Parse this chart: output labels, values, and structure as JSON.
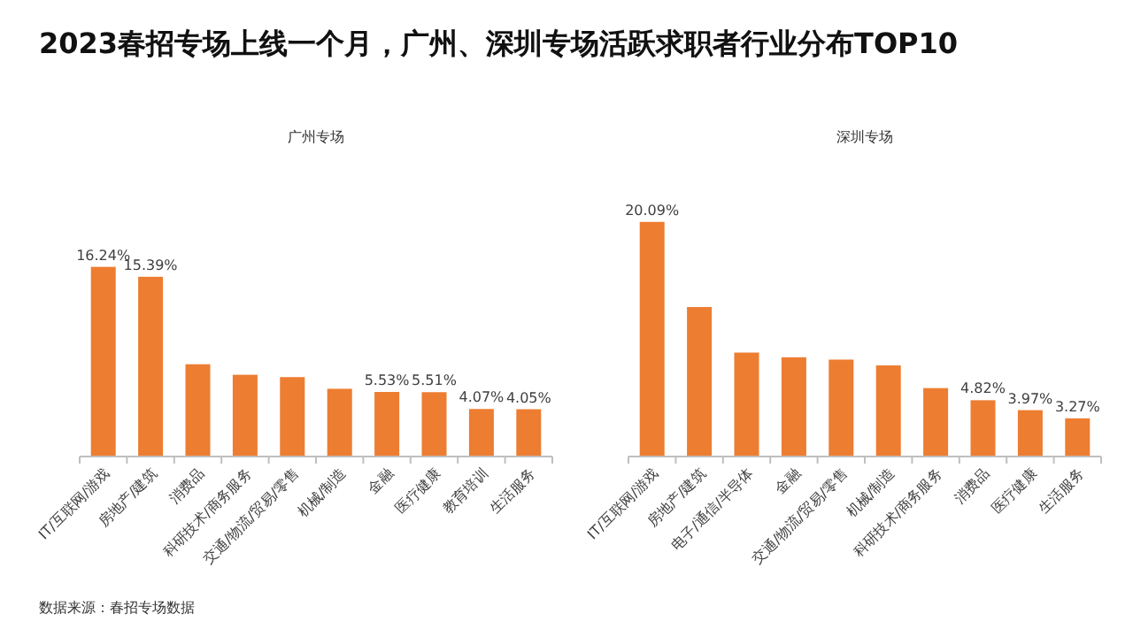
{
  "chart_data": [
    {
      "type": "bar",
      "title": "2023春招专场上线一个月，广州、深圳专场活跃求职者行业分布TOP10",
      "subtitle": "广州专场",
      "categories": [
        "IT/互联网/游戏",
        "房地产/建筑",
        "消费品",
        "科研技术/商务服务",
        "交通/物流/贸易/零售",
        "机械/制造",
        "金融",
        "医疗健康",
        "教育培训",
        "生活服务"
      ],
      "series": [
        {
          "color": "#ed7d31",
          "values": [
            16.24,
            15.39,
            7.9,
            7.0,
            6.8,
            5.8,
            5.53,
            5.51,
            4.07,
            4.05
          ],
          "value_labels": [
            "16.24%",
            "15.39%",
            null,
            null,
            null,
            null,
            "5.53%",
            "5.51%",
            "4.07%",
            "4.05%"
          ]
        }
      ],
      "annotations": [
        "数据来源：春招专场数据"
      ]
    },
    {
      "type": "bar",
      "subtitle": "深圳专场",
      "categories": [
        "IT/互联网/游戏",
        "房地产/建筑",
        "电子/通信/半导体",
        "金融",
        "交通/物流/贸易/零售",
        "机械/制造",
        "科研技术/商务服务",
        "消费品",
        "医疗健康",
        "生活服务"
      ],
      "series": [
        {
          "color": "#ed7d31",
          "values": [
            20.09,
            12.8,
            8.9,
            8.5,
            8.3,
            7.8,
            5.86,
            4.82,
            3.97,
            3.27
          ],
          "value_labels": [
            "20.09%",
            null,
            null,
            null,
            null,
            null,
            null,
            "4.82%",
            "3.97%",
            "3.27%"
          ]
        }
      ]
    }
  ]
}
